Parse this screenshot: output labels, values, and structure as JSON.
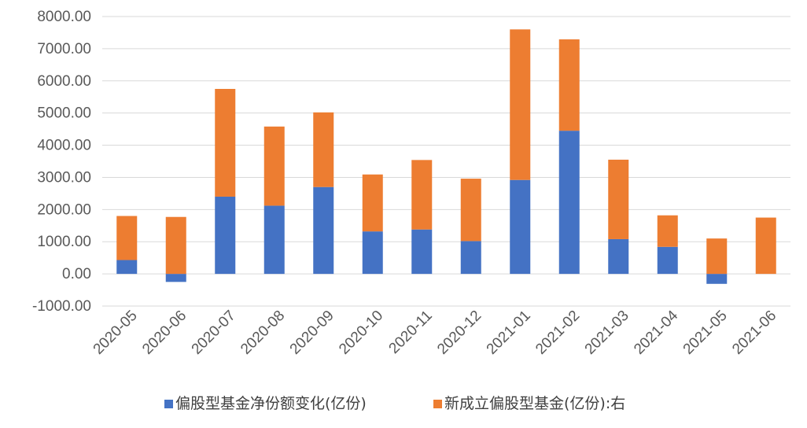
{
  "chart_data": {
    "type": "bar",
    "stacked": true,
    "categories": [
      "2020-05",
      "2020-06",
      "2020-07",
      "2020-08",
      "2020-09",
      "2020-10",
      "2020-11",
      "2020-12",
      "2021-01",
      "2021-02",
      "2021-03",
      "2021-04",
      "2021-05",
      "2021-06"
    ],
    "series": [
      {
        "name": "偏股型基金净份额变化(亿份)",
        "color": "#4472c4",
        "values": [
          430,
          -250,
          2400,
          2120,
          2700,
          1320,
          1380,
          1020,
          2920,
          4450,
          1080,
          840,
          -310,
          0
        ]
      },
      {
        "name": "新成立偏股型基金(亿份):右",
        "color": "#ed7d31",
        "values": [
          1370,
          1770,
          3350,
          2460,
          2320,
          1770,
          2160,
          1940,
          4680,
          2840,
          2470,
          980,
          1100,
          1750
        ]
      }
    ],
    "y_ticks": [
      "-1000.00",
      "0.00",
      "1000.00",
      "2000.00",
      "3000.00",
      "4000.00",
      "5000.00",
      "6000.00",
      "7000.00",
      "8000.00"
    ],
    "ylim": [
      -1000,
      8000
    ],
    "grid": true,
    "legend_position": "bottom"
  }
}
